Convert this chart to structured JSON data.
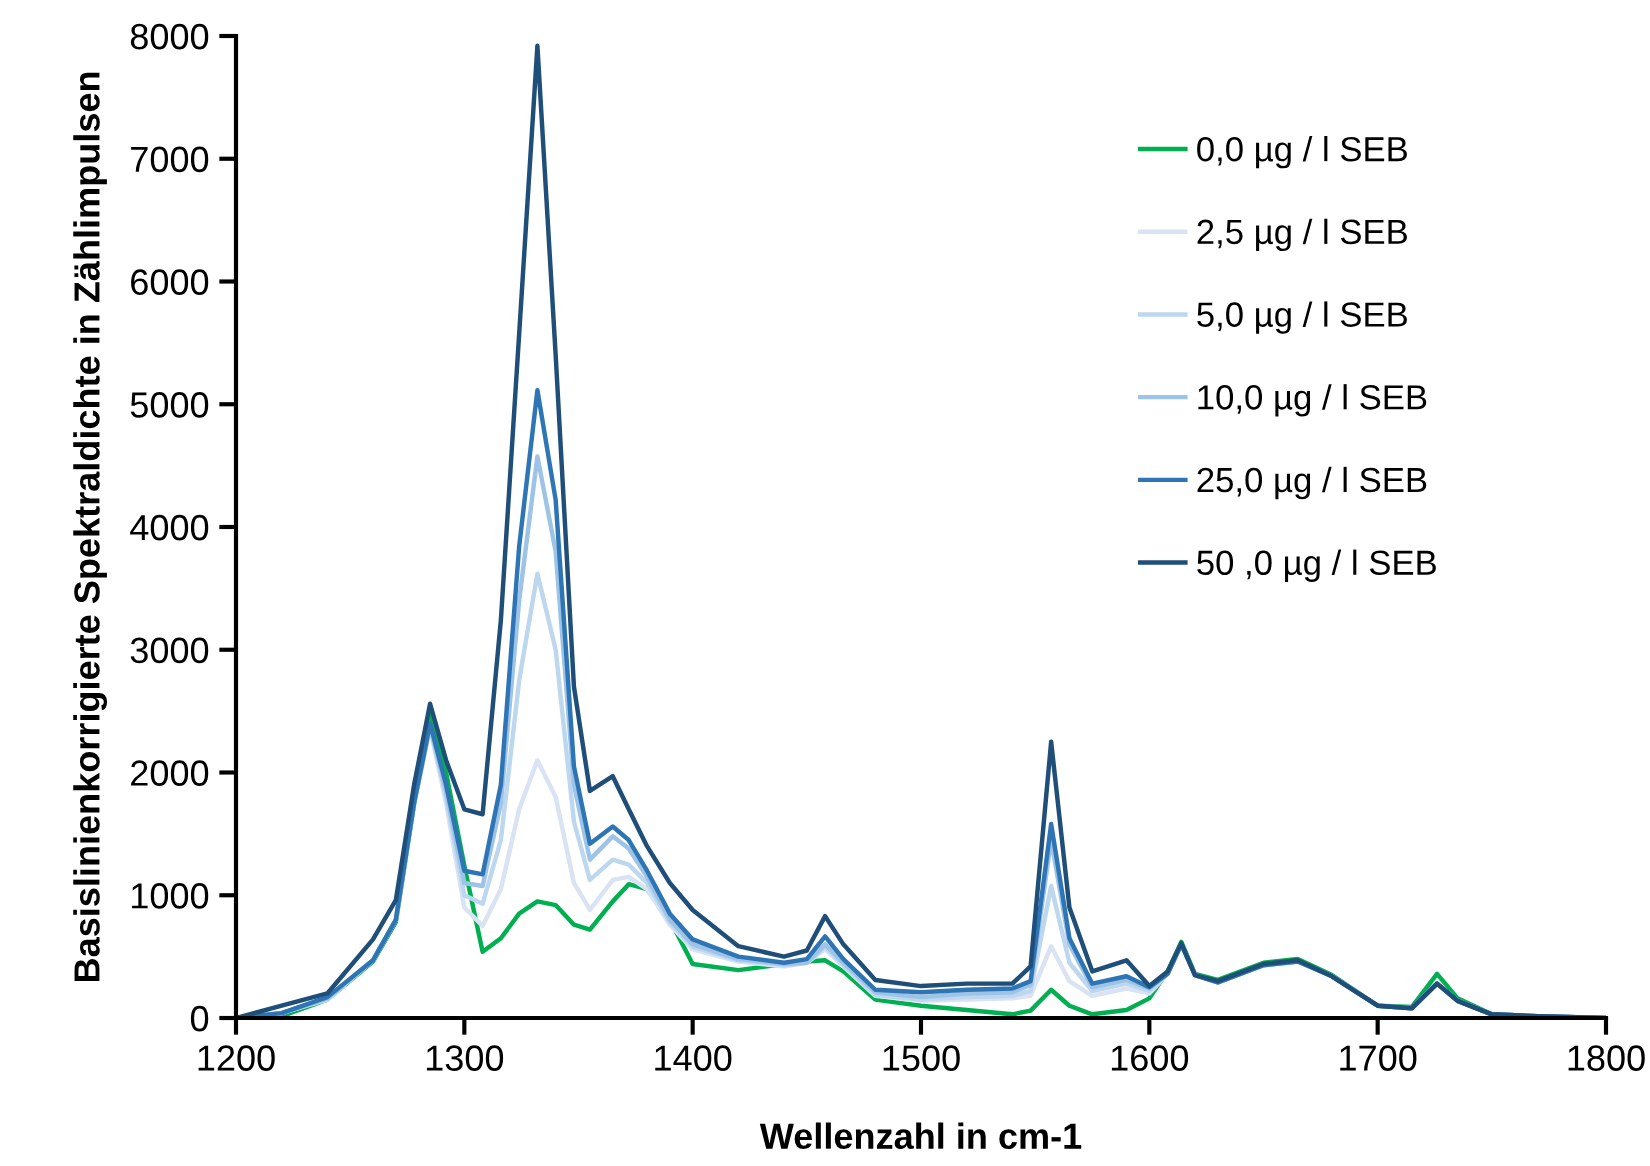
{
  "chart_data": {
    "type": "line",
    "xlabel": "Wellenzahl in cm-1",
    "ylabel": "Basislinienkorrigierte Spektraldichte in Zählimpulsen",
    "xlim": [
      1200,
      1800
    ],
    "xticks": [
      1200,
      1300,
      1400,
      1500,
      1600,
      1700,
      1800
    ],
    "ylim": [
      0,
      8000
    ],
    "yticks": [
      0,
      1000,
      2000,
      3000,
      4000,
      5000,
      6000,
      7000,
      8000
    ],
    "grid": false,
    "legend": "top right",
    "marker": "none",
    "line_style": "solid",
    "x": [
      1200,
      1220,
      1240,
      1260,
      1270,
      1278,
      1285,
      1292,
      1300,
      1308,
      1316,
      1324,
      1332,
      1340,
      1348,
      1355,
      1365,
      1372,
      1380,
      1390,
      1400,
      1420,
      1440,
      1450,
      1458,
      1466,
      1480,
      1500,
      1520,
      1540,
      1548,
      1557,
      1565,
      1575,
      1590,
      1600,
      1608,
      1614,
      1620,
      1630,
      1650,
      1665,
      1680,
      1700,
      1715,
      1726,
      1735,
      1750,
      1770,
      1800
    ],
    "series": [
      {
        "name": "0,0 µg / l SEB",
        "color": "#00b050",
        "values": [
          0,
          15,
          150,
          460,
          780,
          1750,
          2500,
          2000,
          1240,
          540,
          650,
          850,
          950,
          920,
          760,
          720,
          950,
          1090,
          1050,
          800,
          440,
          390,
          440,
          460,
          470,
          380,
          150,
          100,
          65,
          30,
          60,
          230,
          100,
          30,
          65,
          160,
          380,
          620,
          360,
          310,
          450,
          480,
          350,
          100,
          90,
          360,
          160,
          30,
          15,
          0
        ]
      },
      {
        "name": "2,5 µg / l SEB",
        "color": "#dae3f3",
        "values": [
          0,
          40,
          150,
          470,
          800,
          1750,
          2360,
          1750,
          900,
          750,
          1050,
          1700,
          2100,
          1800,
          1100,
          880,
          1125,
          1150,
          1050,
          760,
          560,
          460,
          420,
          450,
          560,
          420,
          180,
          140,
          150,
          160,
          180,
          585,
          300,
          180,
          240,
          200,
          360,
          600,
          350,
          290,
          430,
          460,
          340,
          100,
          80,
          280,
          140,
          30,
          15,
          0
        ]
      },
      {
        "name": "5,0 µg / l SEB",
        "color": "#bdd7ee",
        "values": [
          0,
          40,
          155,
          470,
          800,
          1750,
          2370,
          1800,
          1000,
          930,
          1450,
          2750,
          3620,
          3000,
          1600,
          1125,
          1290,
          1250,
          1100,
          780,
          580,
          470,
          430,
          450,
          580,
          430,
          190,
          150,
          170,
          180,
          220,
          1075,
          450,
          220,
          280,
          220,
          360,
          600,
          350,
          290,
          430,
          460,
          340,
          100,
          80,
          280,
          140,
          30,
          15,
          0
        ]
      },
      {
        "name": "10,0 µg / l SEB",
        "color": "#9dc3e6",
        "values": [
          0,
          40,
          160,
          470,
          800,
          1750,
          2380,
          1850,
          1100,
          1075,
          1750,
          3400,
          4575,
          3800,
          1900,
          1290,
          1480,
          1380,
          1150,
          800,
          600,
          480,
          440,
          450,
          600,
          450,
          210,
          170,
          200,
          210,
          270,
          1450,
          600,
          250,
          310,
          240,
          360,
          600,
          350,
          290,
          430,
          460,
          340,
          100,
          80,
          280,
          140,
          30,
          15,
          0
        ]
      },
      {
        "name": "25,0 µg / l SEB",
        "color": "#2e75b6",
        "values": [
          0,
          40,
          170,
          470,
          800,
          1750,
          2400,
          1900,
          1200,
          1170,
          1900,
          3840,
          5115,
          4220,
          2050,
          1420,
          1560,
          1450,
          1200,
          850,
          640,
          500,
          450,
          480,
          665,
          480,
          230,
          210,
          230,
          240,
          300,
          1580,
          650,
          280,
          340,
          250,
          360,
          600,
          350,
          290,
          430,
          460,
          340,
          100,
          80,
          280,
          140,
          30,
          15,
          0
        ]
      },
      {
        "name": "50 ,0 µg / l SEB",
        "color": "#1f4e79",
        "values": [
          0,
          100,
          200,
          640,
          960,
          1900,
          2560,
          2100,
          1700,
          1660,
          3240,
          5570,
          7920,
          5400,
          2700,
          1850,
          1970,
          1700,
          1400,
          1100,
          880,
          585,
          500,
          550,
          830,
          600,
          310,
          260,
          280,
          280,
          420,
          2250,
          900,
          380,
          470,
          260,
          380,
          610,
          350,
          300,
          440,
          470,
          340,
          100,
          80,
          280,
          140,
          30,
          15,
          0
        ]
      }
    ]
  }
}
